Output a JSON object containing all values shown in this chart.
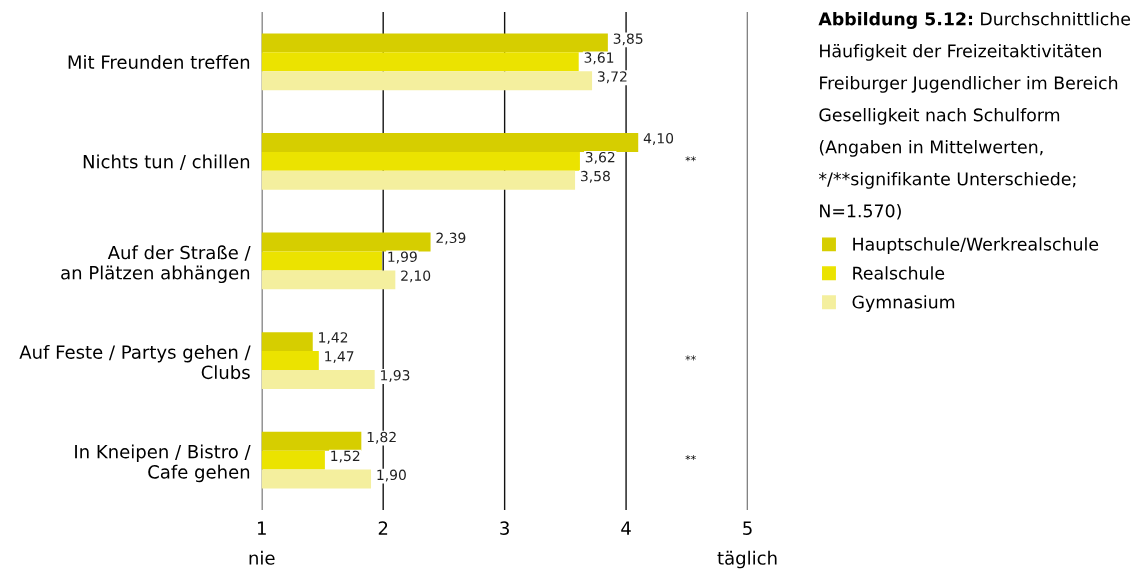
{
  "chart_data": {
    "type": "bar",
    "orientation": "horizontal",
    "title": "Abbildung 5.12:",
    "subtitle": "Durchschnittliche\nHäufigkeit der Freizeitaktivitäten\nFreiburger Jugendlicher im Bereich\nGeselligkeit nach Schulform\n(Angaben in Mittelwerten,\n*/**signifikante Unterschiede;\nN=1.570)",
    "categories": [
      "Mit Freunden treffen",
      "Nichts tun / chillen",
      "Auf der Straße /\nan Plätzen abhängen",
      "Auf Feste / Partys gehen /\nClubs",
      "In Kneipen / Bistro /\nCafe gehen"
    ],
    "series": [
      {
        "name": "Hauptschule/Werkrealschule",
        "color": "#d6ce00",
        "values": [
          3.85,
          4.1,
          2.39,
          1.42,
          1.82
        ],
        "value_labels": [
          "3,85",
          "4,10",
          "2,39",
          "1,42",
          "1,82"
        ]
      },
      {
        "name": "Realschule",
        "color": "#ebe300",
        "values": [
          3.61,
          3.62,
          1.99,
          1.47,
          1.52
        ],
        "value_labels": [
          "3,61",
          "3,62",
          "1,99",
          "1,47",
          "1,52"
        ]
      },
      {
        "name": "Gymnasium",
        "color": "#f4ef9e",
        "values": [
          3.72,
          3.58,
          2.1,
          1.93,
          1.9
        ],
        "value_labels": [
          "3,72",
          "3,58",
          "2,10",
          "1,93",
          "1,90"
        ]
      }
    ],
    "xlim": [
      1,
      5
    ],
    "xticks": [
      {
        "value": 1,
        "label": "1\nnie"
      },
      2,
      3,
      4,
      {
        "value": 5,
        "label": "5\ntäglich"
      }
    ],
    "grid": "x",
    "legend": "right",
    "annotations": [
      "**",
      "**",
      "**"
    ]
  }
}
